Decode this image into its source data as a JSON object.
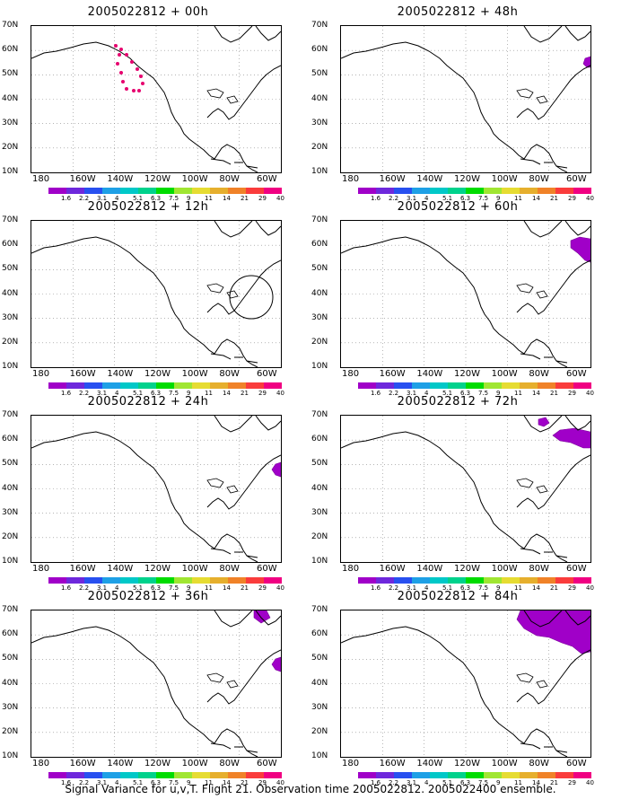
{
  "panels": [
    {
      "title": "2005022812 + 00h",
      "col": 0,
      "row": 0,
      "blobs": [],
      "dots": true,
      "circle": false
    },
    {
      "title": "2005022812 + 12h",
      "col": 0,
      "row": 1,
      "blobs": [],
      "dots": false,
      "circle": true
    },
    {
      "title": "2005022812 + 24h",
      "col": 0,
      "row": 2,
      "blobs": [
        "east-small"
      ],
      "dots": false,
      "circle": false
    },
    {
      "title": "2005022812 + 36h",
      "col": 0,
      "row": 3,
      "blobs": [
        "east-small",
        "north"
      ],
      "dots": false,
      "circle": false
    },
    {
      "title": "2005022812 + 48h",
      "col": 1,
      "row": 0,
      "blobs": [
        "east-tiny"
      ],
      "dots": false,
      "circle": false
    },
    {
      "title": "2005022812 + 60h",
      "col": 1,
      "row": 1,
      "blobs": [
        "east-medium"
      ],
      "dots": false,
      "circle": false
    },
    {
      "title": "2005022812 + 72h",
      "col": 1,
      "row": 2,
      "blobs": [
        "east-large",
        "isle"
      ],
      "dots": false,
      "circle": false
    },
    {
      "title": "2005022812 + 84h",
      "col": 1,
      "row": 3,
      "blobs": [
        "east-huge"
      ],
      "dots": false,
      "circle": false
    }
  ],
  "y_labels": [
    "70N",
    "60N",
    "50N",
    "40N",
    "30N",
    "20N",
    "10N"
  ],
  "x_labels": [
    "180",
    "160W",
    "140W",
    "120W",
    "100W",
    "80W",
    "60W"
  ],
  "colorbar": {
    "colors": [
      "#a000c8",
      "#6e28dc",
      "#2850f0",
      "#1ea0e6",
      "#00c8c8",
      "#00d28c",
      "#00dc00",
      "#a0e632",
      "#e6dc32",
      "#e6af2d",
      "#f08228",
      "#fa3c3c",
      "#f00082"
    ],
    "labels": [
      "1.6",
      "2.2",
      "3.1",
      "4",
      "5.1",
      "6.3",
      "7.5",
      "9",
      "11",
      "14",
      "21",
      "29",
      "40"
    ]
  },
  "caption": "Signal Variance for u,v,T. Flight 21. Observation time 2005022812. 2005022400 ensemble."
}
